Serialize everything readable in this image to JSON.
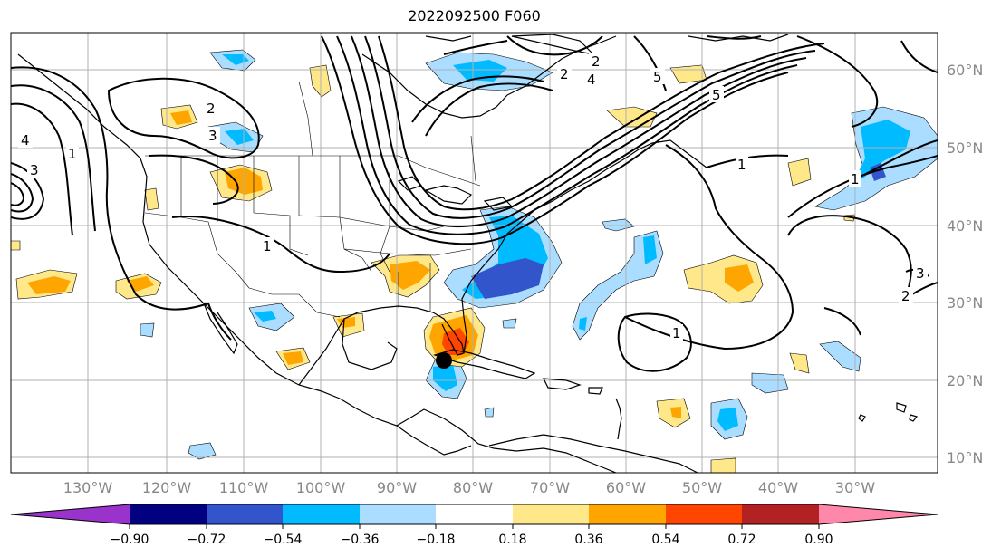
{
  "title": "2022092500 F060",
  "map": {
    "lat_labels": [
      "60°N",
      "50°N",
      "40°N",
      "30°N",
      "20°N",
      "10°N"
    ],
    "lon_labels": [
      "130°W",
      "120°W",
      "110°W",
      "100°W",
      "90°W",
      "80°W",
      "70°W",
      "60°W",
      "50°W",
      "40°W",
      "30°W"
    ],
    "contour_labels": [
      "2",
      "3",
      "2",
      "5",
      "4",
      "5",
      "2",
      "4",
      "3",
      "1",
      "1",
      "1",
      "3",
      "2",
      "1",
      "1"
    ],
    "storm_marker": "black-dot",
    "colors": {
      "gridline": "#b0b0b0",
      "coast": "#000000",
      "contour": "#000000"
    }
  },
  "colorbar": {
    "tick_labels": [
      "−0.90",
      "−0.72",
      "−0.54",
      "−0.36",
      "−0.18",
      "0.18",
      "0.36",
      "0.54",
      "0.72",
      "0.90"
    ],
    "colors": [
      "#9933cc",
      "#000080",
      "#3355cc",
      "#00bbff",
      "#aaddff",
      "#ffffff",
      "#ffe88a",
      "#ffa500",
      "#ff4500",
      "#b22222",
      "#ff88aa"
    ]
  }
}
